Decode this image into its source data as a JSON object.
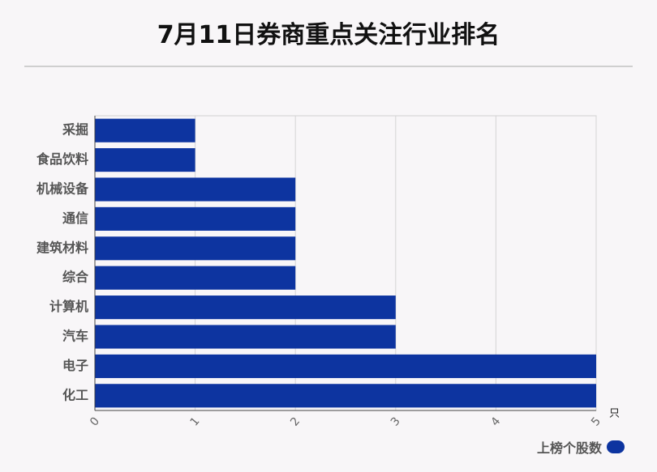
{
  "title": "7月11日券商重点关注行业排名",
  "chart_data": {
    "type": "bar",
    "orientation": "horizontal",
    "categories": [
      "采掘",
      "食品饮料",
      "机械设备",
      "通信",
      "建筑材料",
      "综合",
      "计算机",
      "汽车",
      "电子",
      "化工"
    ],
    "series": [
      {
        "name": "上榜个股数",
        "values": [
          1,
          1,
          2,
          2,
          2,
          2,
          3,
          3,
          5,
          5
        ]
      }
    ],
    "xlim": [
      0,
      5
    ],
    "xticks": [
      "0",
      "1",
      "2",
      "3",
      "4",
      "5"
    ],
    "xunit": "只",
    "grid": true,
    "legend_position": "bottom-right",
    "bar_color": "#0d34a0"
  }
}
